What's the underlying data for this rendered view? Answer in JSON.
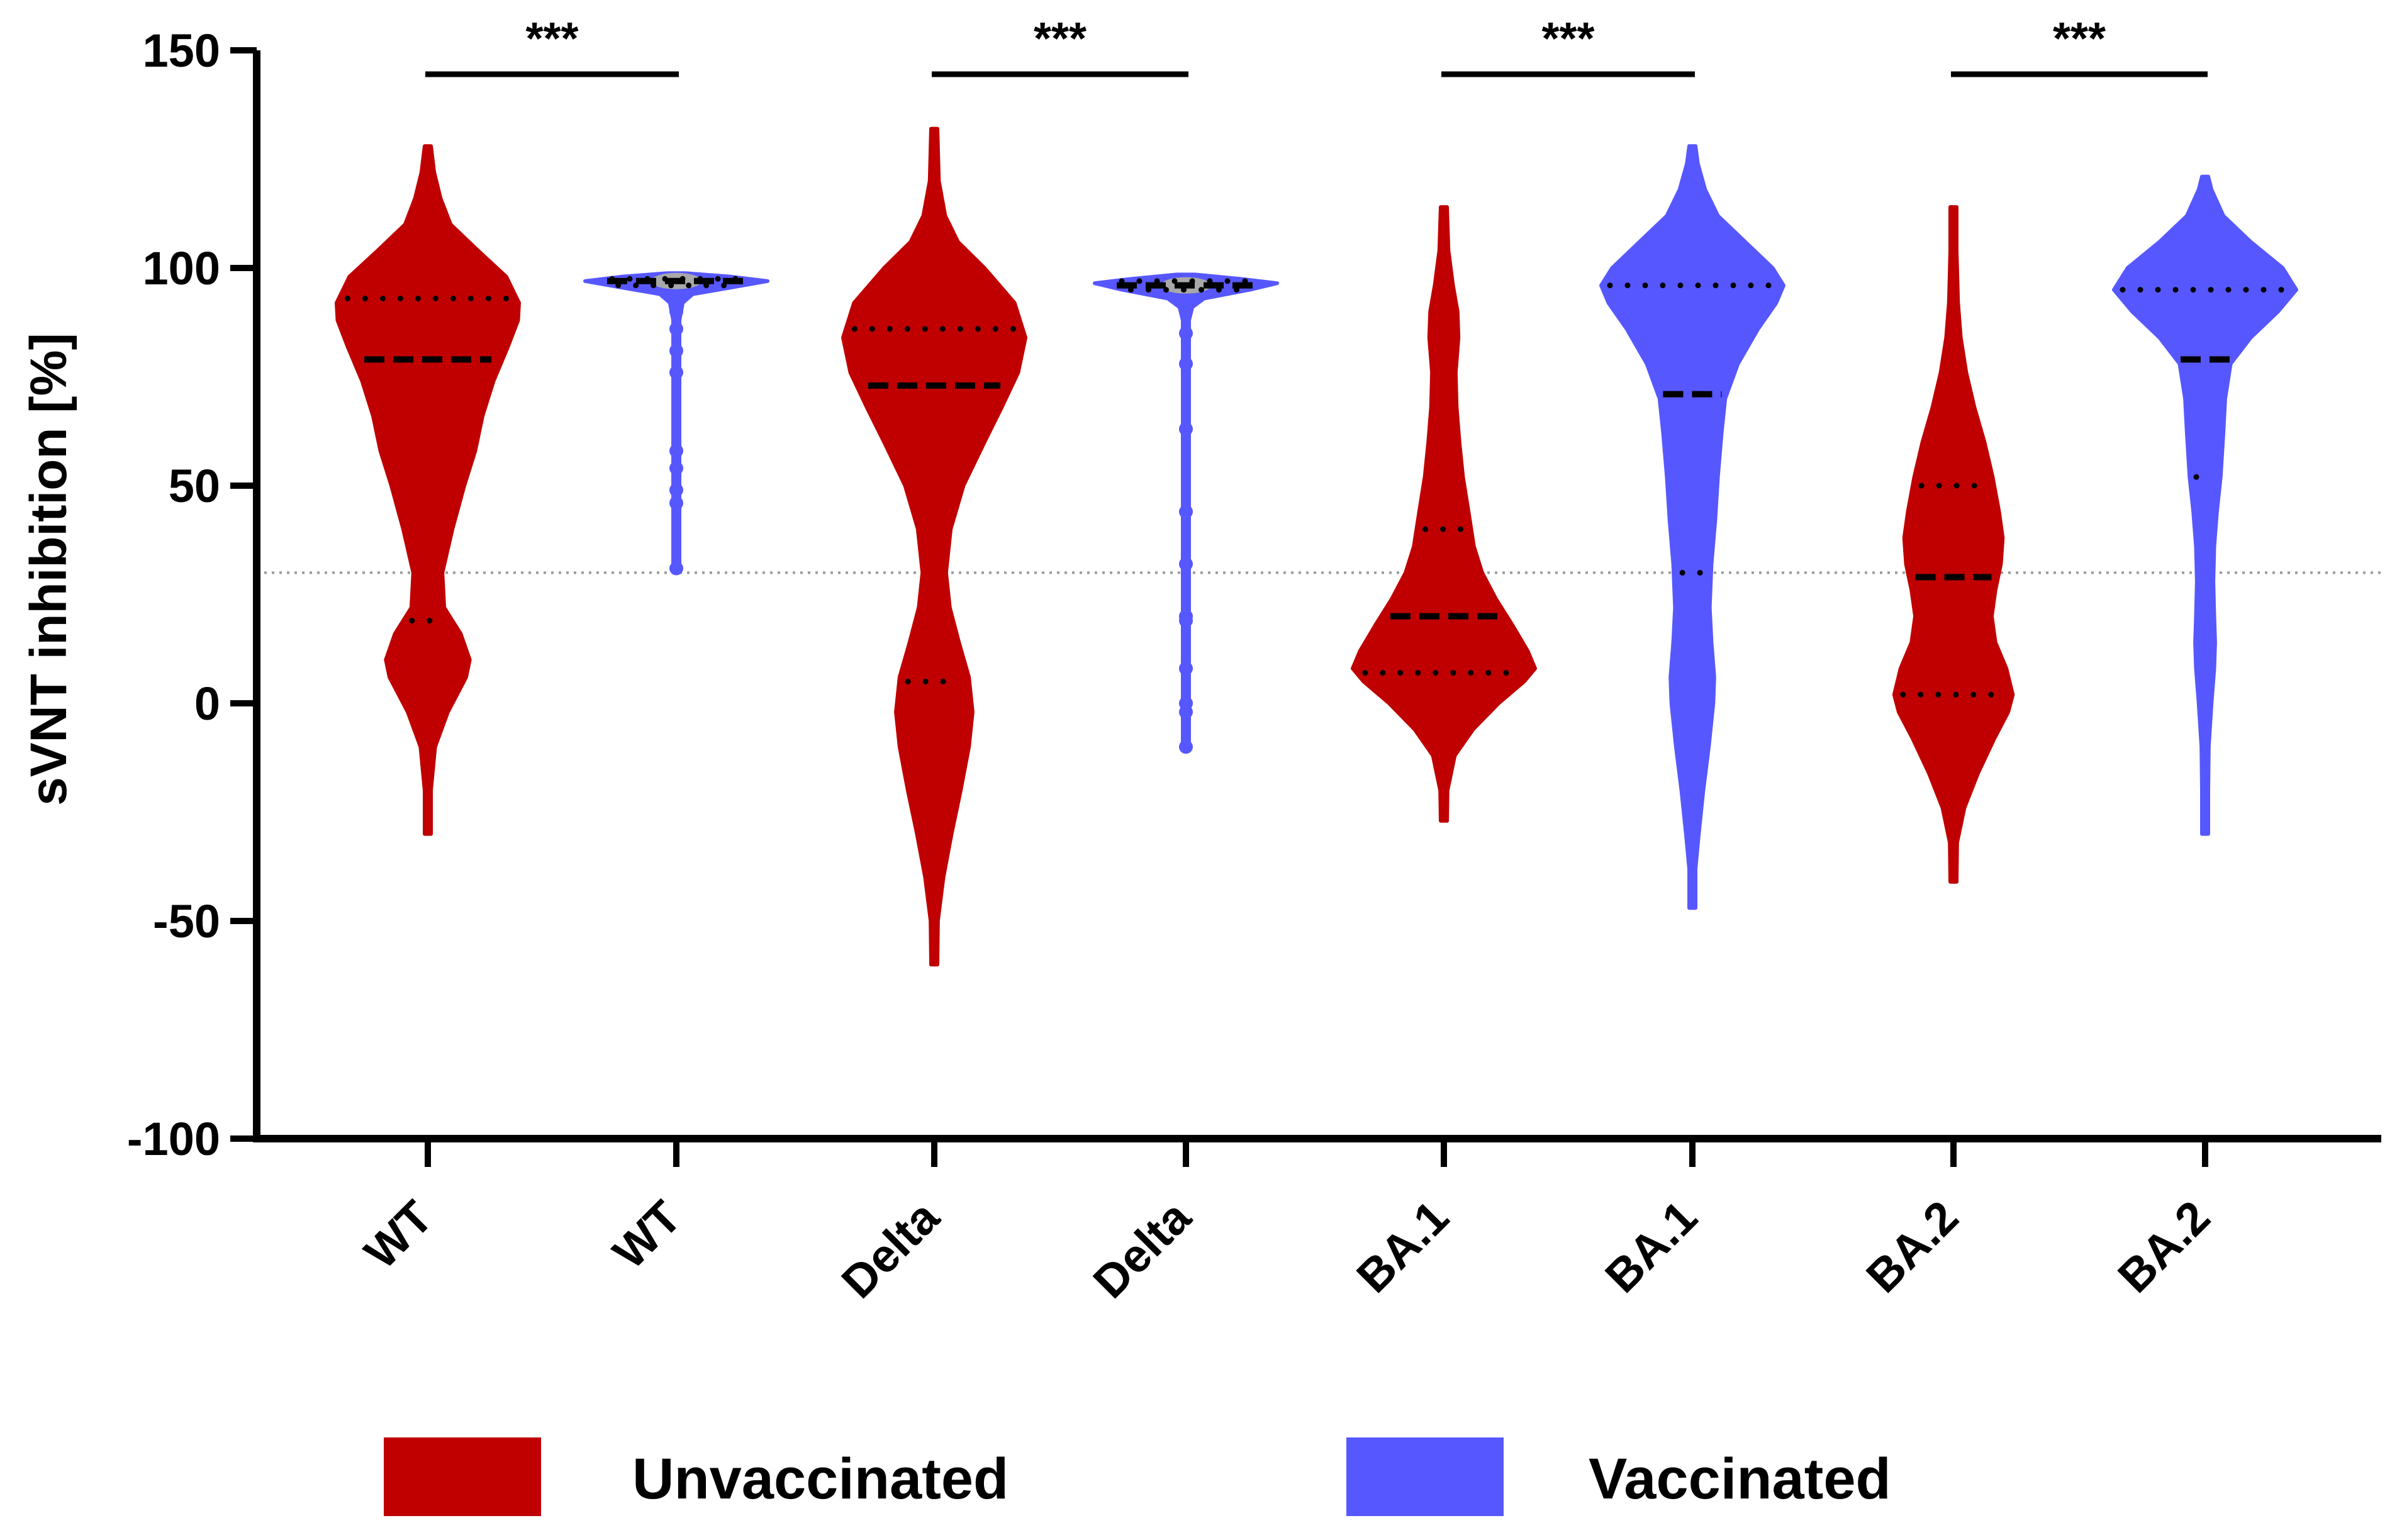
{
  "chart_data": {
    "type": "violin",
    "title": "",
    "xlabel": "",
    "ylabel": "sVNT inhibition [%]",
    "ylim": [
      -100,
      150
    ],
    "yticks": [
      "150",
      "100",
      "50",
      "0",
      "-50",
      "-100"
    ],
    "threshold": 30,
    "categories": [
      "WT",
      "WT",
      "Delta",
      "Delta",
      "BA.1",
      "BA.1",
      "BA.2",
      "BA.2"
    ],
    "groups": [
      {
        "category": "WT",
        "series": "Unvaccinated",
        "min": -30,
        "max": 128,
        "median": 79,
        "q1": 19,
        "q3": 93,
        "density": [
          [
            -30,
            0.015
          ],
          [
            -20,
            0.03
          ],
          [
            -10,
            0.08
          ],
          [
            -2,
            0.22
          ],
          [
            6,
            0.42
          ],
          [
            10,
            0.46
          ],
          [
            16,
            0.36
          ],
          [
            22,
            0.18
          ],
          [
            30,
            0.16
          ],
          [
            40,
            0.27
          ],
          [
            50,
            0.4
          ],
          [
            58,
            0.52
          ],
          [
            66,
            0.6
          ],
          [
            74,
            0.72
          ],
          [
            82,
            0.88
          ],
          [
            88,
            0.99
          ],
          [
            92,
            1.0
          ],
          [
            98,
            0.86
          ],
          [
            104,
            0.55
          ],
          [
            110,
            0.25
          ],
          [
            116,
            0.14
          ],
          [
            122,
            0.07
          ],
          [
            128,
            0.02
          ]
        ]
      },
      {
        "category": "WT",
        "series": "Vaccinated",
        "min": 31,
        "max": 98,
        "median": 97,
        "q1": 96,
        "q3": 97.5,
        "points": [
          31,
          46,
          49,
          54,
          58,
          76,
          81,
          86,
          90,
          92,
          94
        ],
        "density": [
          [
            31,
            0.02
          ],
          [
            40,
            0.02
          ],
          [
            50,
            0.02
          ],
          [
            60,
            0.02
          ],
          [
            70,
            0.02
          ],
          [
            80,
            0.025
          ],
          [
            88,
            0.03
          ],
          [
            92,
            0.07
          ],
          [
            94,
            0.18
          ],
          [
            95.5,
            0.6
          ],
          [
            97,
            1.0
          ],
          [
            98,
            0.6
          ],
          [
            98.8,
            0.1
          ]
        ]
      },
      {
        "category": "Delta",
        "series": "Unvaccinated",
        "min": -60,
        "max": 132,
        "median": 73,
        "q1": 5,
        "q3": 86,
        "density": [
          [
            -60,
            0.01
          ],
          [
            -50,
            0.04
          ],
          [
            -40,
            0.1
          ],
          [
            -30,
            0.19
          ],
          [
            -20,
            0.29
          ],
          [
            -10,
            0.38
          ],
          [
            -2,
            0.42
          ],
          [
            6,
            0.38
          ],
          [
            14,
            0.27
          ],
          [
            22,
            0.17
          ],
          [
            30,
            0.13
          ],
          [
            40,
            0.18
          ],
          [
            50,
            0.32
          ],
          [
            60,
            0.55
          ],
          [
            68,
            0.74
          ],
          [
            76,
            0.92
          ],
          [
            84,
            1.0
          ],
          [
            92,
            0.88
          ],
          [
            100,
            0.55
          ],
          [
            106,
            0.26
          ],
          [
            112,
            0.12
          ],
          [
            120,
            0.05
          ],
          [
            132,
            0.01
          ]
        ]
      },
      {
        "category": "Delta",
        "series": "Vaccinated",
        "min": -10,
        "max": 98,
        "median": 96,
        "q1": 95,
        "q3": 97,
        "points": [
          -10,
          -2,
          0,
          8,
          19,
          20,
          32,
          44,
          63,
          78,
          85,
          90,
          93
        ],
        "density": [
          [
            -10,
            0.02
          ],
          [
            0,
            0.02
          ],
          [
            20,
            0.02
          ],
          [
            40,
            0.02
          ],
          [
            60,
            0.02
          ],
          [
            80,
            0.025
          ],
          [
            88,
            0.03
          ],
          [
            91,
            0.07
          ],
          [
            93,
            0.2
          ],
          [
            95,
            0.7
          ],
          [
            96.5,
            1.0
          ],
          [
            97.5,
            0.6
          ],
          [
            98.5,
            0.1
          ]
        ]
      },
      {
        "category": "BA.1",
        "series": "Unvaccinated",
        "min": -27,
        "max": 114,
        "median": 20,
        "q1": 7,
        "q3": 40,
        "density": [
          [
            -27,
            0.015
          ],
          [
            -20,
            0.04
          ],
          [
            -12,
            0.12
          ],
          [
            -6,
            0.32
          ],
          [
            0,
            0.6
          ],
          [
            5,
            0.88
          ],
          [
            8,
            1.0
          ],
          [
            12,
            0.92
          ],
          [
            18,
            0.75
          ],
          [
            24,
            0.57
          ],
          [
            30,
            0.42
          ],
          [
            36,
            0.33
          ],
          [
            44,
            0.27
          ],
          [
            52,
            0.21
          ],
          [
            60,
            0.17
          ],
          [
            68,
            0.14
          ],
          [
            76,
            0.13
          ],
          [
            84,
            0.16
          ],
          [
            90,
            0.15
          ],
          [
            96,
            0.1
          ],
          [
            104,
            0.05
          ],
          [
            114,
            0.01
          ]
        ]
      },
      {
        "category": "BA.1",
        "series": "Vaccinated",
        "min": -47,
        "max": 128,
        "median": 71,
        "q1": 30,
        "q3": 96,
        "density": [
          [
            -47,
            0.01
          ],
          [
            -38,
            0.03
          ],
          [
            -30,
            0.07
          ],
          [
            -20,
            0.12
          ],
          [
            -10,
            0.18
          ],
          [
            0,
            0.23
          ],
          [
            6,
            0.24
          ],
          [
            14,
            0.21
          ],
          [
            22,
            0.19
          ],
          [
            32,
            0.21
          ],
          [
            42,
            0.25
          ],
          [
            52,
            0.28
          ],
          [
            62,
            0.32
          ],
          [
            70,
            0.36
          ],
          [
            78,
            0.5
          ],
          [
            86,
            0.72
          ],
          [
            92,
            0.92
          ],
          [
            96,
            1.0
          ],
          [
            100,
            0.88
          ],
          [
            106,
            0.58
          ],
          [
            112,
            0.28
          ],
          [
            118,
            0.14
          ],
          [
            124,
            0.06
          ],
          [
            128,
            0.01
          ]
        ]
      },
      {
        "category": "BA.2",
        "series": "Unvaccinated",
        "min": -41,
        "max": 114,
        "median": 29,
        "q1": 2,
        "q3": 50,
        "density": [
          [
            -41,
            0.01
          ],
          [
            -32,
            0.04
          ],
          [
            -24,
            0.12
          ],
          [
            -16,
            0.27
          ],
          [
            -8,
            0.45
          ],
          [
            -2,
            0.6
          ],
          [
            2,
            0.65
          ],
          [
            8,
            0.58
          ],
          [
            14,
            0.46
          ],
          [
            20,
            0.42
          ],
          [
            26,
            0.46
          ],
          [
            32,
            0.52
          ],
          [
            38,
            0.54
          ],
          [
            44,
            0.5
          ],
          [
            52,
            0.43
          ],
          [
            60,
            0.34
          ],
          [
            68,
            0.23
          ],
          [
            76,
            0.14
          ],
          [
            84,
            0.08
          ],
          [
            92,
            0.05
          ],
          [
            104,
            0.03
          ],
          [
            114,
            0.01
          ]
        ]
      },
      {
        "category": "BA.2",
        "series": "Vaccinated",
        "min": -30,
        "max": 121,
        "median": 79,
        "q1": 52,
        "q3": 95,
        "density": [
          [
            -30,
            0.01
          ],
          [
            -20,
            0.02
          ],
          [
            -10,
            0.04
          ],
          [
            0,
            0.07
          ],
          [
            8,
            0.1
          ],
          [
            14,
            0.11
          ],
          [
            20,
            0.1
          ],
          [
            28,
            0.09
          ],
          [
            36,
            0.1
          ],
          [
            44,
            0.13
          ],
          [
            52,
            0.17
          ],
          [
            62,
            0.2
          ],
          [
            70,
            0.22
          ],
          [
            78,
            0.28
          ],
          [
            84,
            0.5
          ],
          [
            90,
            0.8
          ],
          [
            95,
            1.0
          ],
          [
            100,
            0.85
          ],
          [
            106,
            0.5
          ],
          [
            112,
            0.2
          ],
          [
            118,
            0.07
          ],
          [
            121,
            0.02
          ]
        ]
      }
    ],
    "significance": [
      {
        "label": "***",
        "pair": [
          0,
          1
        ]
      },
      {
        "label": "***",
        "pair": [
          2,
          3
        ]
      },
      {
        "label": "***",
        "pair": [
          4,
          5
        ]
      },
      {
        "label": "***",
        "pair": [
          6,
          7
        ]
      }
    ],
    "legend": [
      {
        "name": "Unvaccinated",
        "color": "#c00000"
      },
      {
        "name": "Vaccinated",
        "color": "#5757ff"
      }
    ],
    "legend_position": "bottom"
  }
}
